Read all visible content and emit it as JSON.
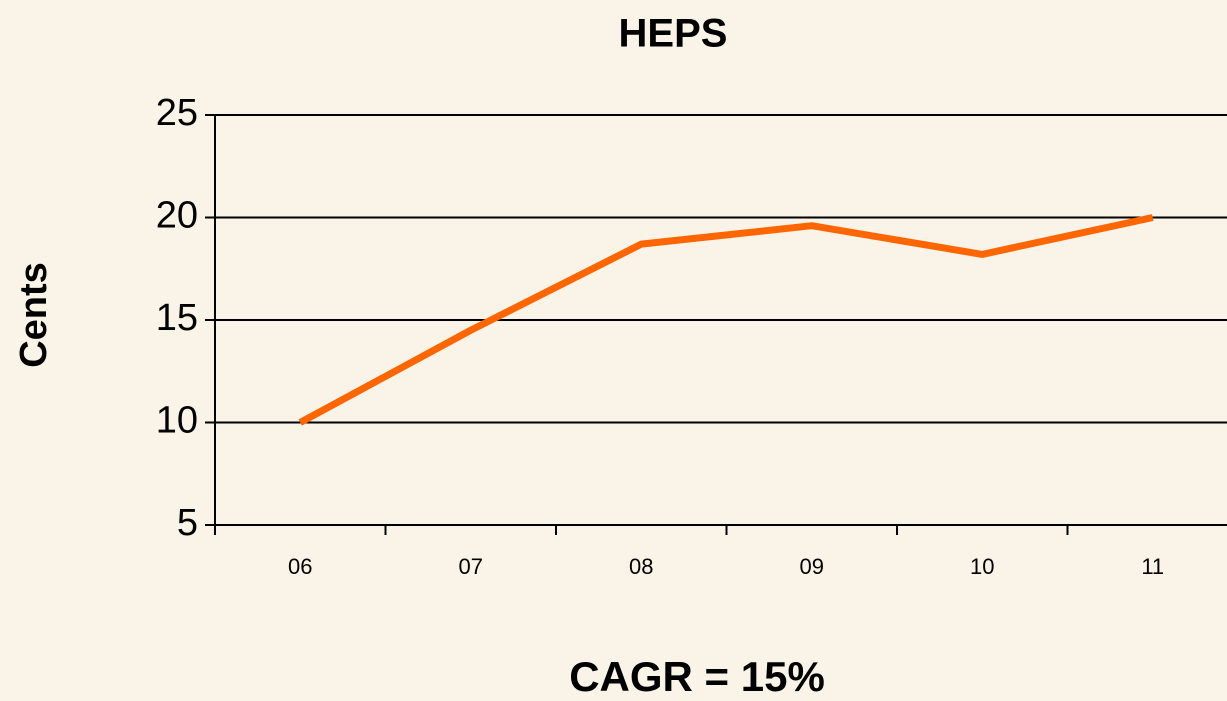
{
  "chart_data": {
    "type": "line",
    "title": "HEPS",
    "y_label": "Cents",
    "annotation": "CAGR = 15%",
    "categories": [
      "06",
      "07",
      "08",
      "09",
      "10",
      "11"
    ],
    "values": [
      10.0,
      14.5,
      18.7,
      19.6,
      18.2,
      20.0
    ],
    "color": "#ff6600",
    "ylim": [
      5,
      25
    ],
    "yticks": [
      5,
      10,
      15,
      20,
      25
    ],
    "grid": true
  }
}
